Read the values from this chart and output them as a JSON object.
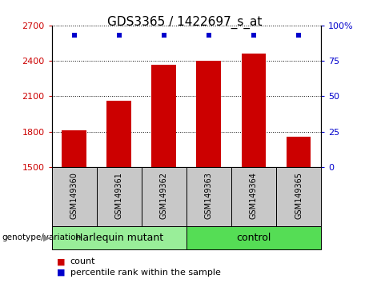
{
  "title": "GDS3365 / 1422697_s_at",
  "samples": [
    "GSM149360",
    "GSM149361",
    "GSM149362",
    "GSM149363",
    "GSM149364",
    "GSM149365"
  ],
  "counts": [
    1810,
    2060,
    2370,
    2400,
    2460,
    1760
  ],
  "percentile_ranks": [
    93,
    93,
    93,
    93,
    93,
    93
  ],
  "ylim_left": [
    1500,
    2700
  ],
  "yticks_left": [
    1500,
    1800,
    2100,
    2400,
    2700
  ],
  "ylim_right": [
    0,
    100
  ],
  "yticks_right": [
    0,
    25,
    50,
    75,
    100
  ],
  "bar_color": "#cc0000",
  "dot_color": "#0000cc",
  "groups": [
    {
      "label": "Harlequin mutant",
      "color": "#99ee99",
      "start": 0,
      "end": 2
    },
    {
      "label": "control",
      "color": "#55dd55",
      "start": 3,
      "end": 5
    }
  ],
  "legend_count_label": "count",
  "legend_pct_label": "percentile rank within the sample",
  "genotype_label": "genotype/variation",
  "background_sample": "#c8c8c8",
  "title_fontsize": 11,
  "tick_fontsize": 8,
  "sample_fontsize": 7,
  "group_fontsize": 9,
  "legend_fontsize": 8
}
